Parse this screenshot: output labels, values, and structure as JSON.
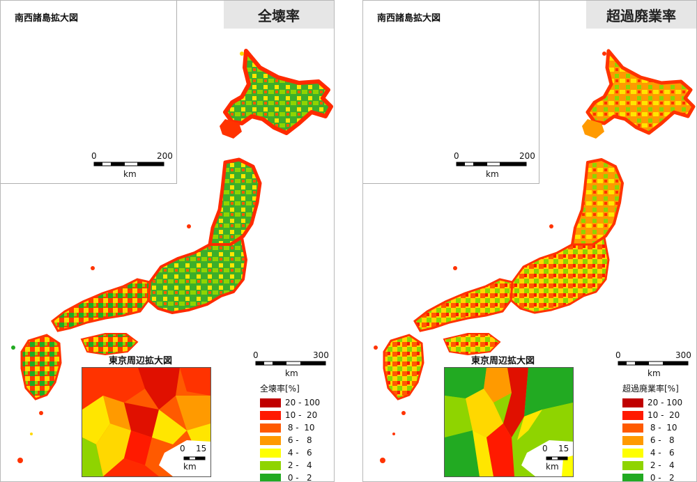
{
  "panels": [
    {
      "title": "全壊率",
      "inset_title": "南西諸島拡大図",
      "inset_scale": {
        "start": "0",
        "end": "200",
        "unit": "km"
      },
      "main_scale": {
        "start": "0",
        "end": "300",
        "unit": "km"
      },
      "tokyo_title": "東京周辺拡大図",
      "tokyo_scale": {
        "start": "0",
        "end": "15",
        "unit": "km"
      },
      "legend_title": "全壊率[%]",
      "legend": [
        {
          "label": "20 - 100",
          "color": "#c00000"
        },
        {
          "label": "10 -  20",
          "color": "#ff1a00"
        },
        {
          "label": " 8 -  10",
          "color": "#ff5a00"
        },
        {
          "label": " 6 -   8",
          "color": "#ff9a00"
        },
        {
          "label": " 4 -   6",
          "color": "#ffff00"
        },
        {
          "label": " 2 -   4",
          "color": "#8fd400"
        },
        {
          "label": " 0 -   2",
          "color": "#22aa22"
        }
      ]
    },
    {
      "title": "超過廃業率",
      "inset_title": "南西諸島拡大図",
      "inset_scale": {
        "start": "0",
        "end": "200",
        "unit": "km"
      },
      "main_scale": {
        "start": "0",
        "end": "300",
        "unit": "km"
      },
      "tokyo_title": "東京周辺拡大図",
      "tokyo_scale": {
        "start": "0",
        "end": "15",
        "unit": "km"
      },
      "legend_title": "超過廃業率[%]",
      "legend": [
        {
          "label": "20 - 100",
          "color": "#c00000"
        },
        {
          "label": "10 -  20",
          "color": "#ff1a00"
        },
        {
          "label": " 8 -  10",
          "color": "#ff5a00"
        },
        {
          "label": " 6 -   8",
          "color": "#ff9a00"
        },
        {
          "label": " 4 -   6",
          "color": "#ffff00"
        },
        {
          "label": " 2 -   4",
          "color": "#8fd400"
        },
        {
          "label": " 0 -   2",
          "color": "#22aa22"
        }
      ]
    }
  ]
}
